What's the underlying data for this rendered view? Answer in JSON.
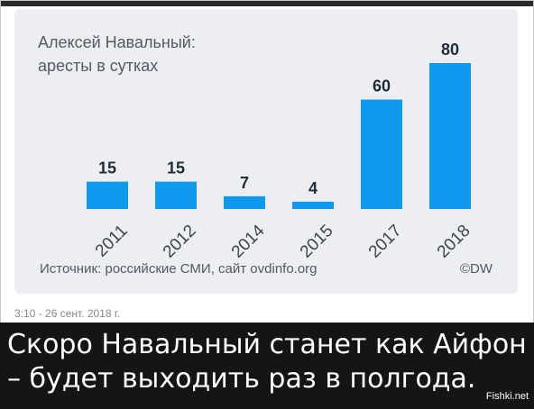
{
  "chart_data": {
    "type": "bar",
    "title_lines": [
      "Алексей Навальный:",
      "аресты в сутках"
    ],
    "categories": [
      "2011",
      "2012",
      "2014",
      "2015",
      "2017",
      "2018"
    ],
    "values": [
      15,
      15,
      7,
      4,
      60,
      80
    ],
    "ylim": [
      0,
      80
    ],
    "grid": false,
    "bar_color": "#0e9bef",
    "source": "Источник: российские СМИ, сайт ovdinfo.org",
    "credit": "©DW"
  },
  "post": {
    "timestamp": "3:10 - 26 сент. 2018 г.",
    "caption_lines": [
      "Скоро Навальный станет как Айфон",
      "– будет выходить раз в полгода."
    ],
    "watermark": "Fishki.net"
  }
}
